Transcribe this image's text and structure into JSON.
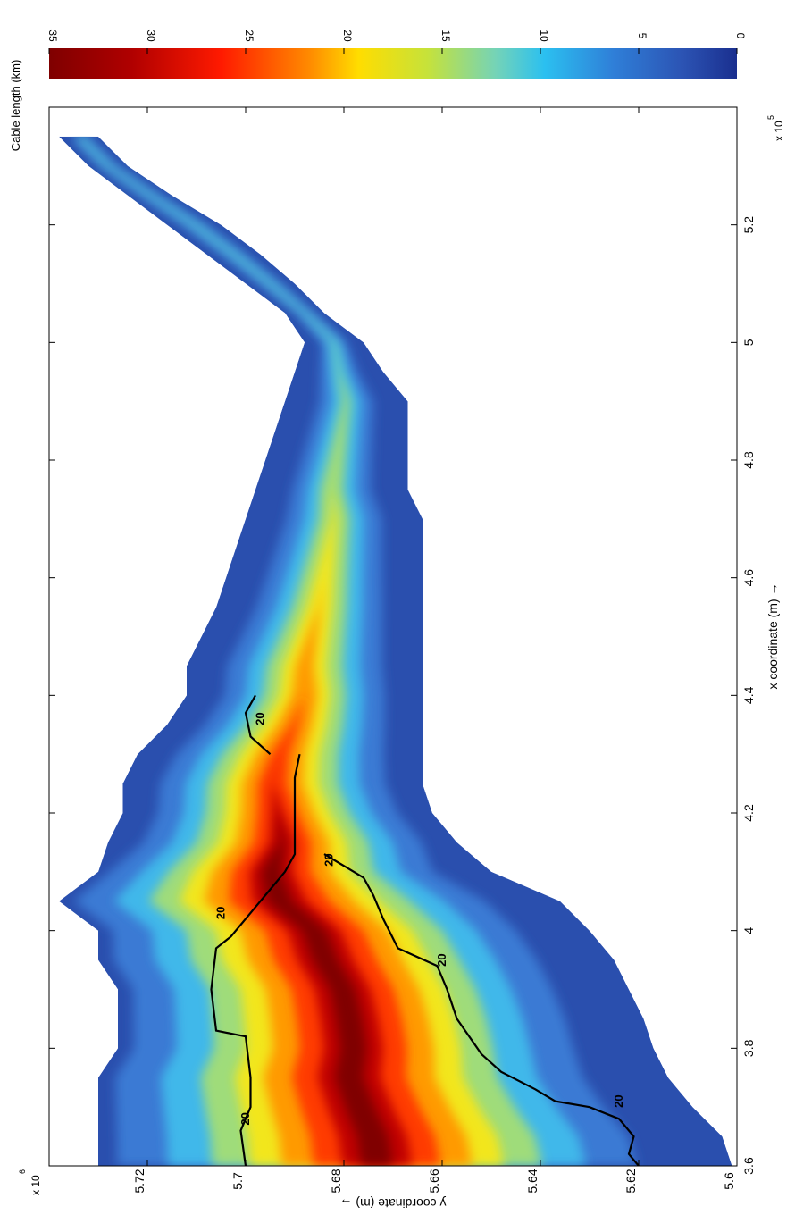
{
  "chart_data": {
    "type": "heatmap",
    "title": "",
    "xlabel": "x coordinate (m) →",
    "ylabel": "y coordinate (m) →",
    "x_exponent_label": "x 10",
    "x_exponent_power": "5",
    "y_exponent_label": "x 10",
    "y_exponent_power": "6",
    "xlim": [
      3.6,
      5.4
    ],
    "ylim": [
      5.6,
      5.74
    ],
    "x_ticks": [
      "3.6",
      "3.8",
      "4",
      "4.2",
      "4.4",
      "4.6",
      "4.8",
      "5",
      "5.2"
    ],
    "y_ticks": [
      "5.6",
      "5.62",
      "5.64",
      "5.66",
      "5.68",
      "5.7",
      "5.72"
    ],
    "colorbar": {
      "label": "Cable length (km)",
      "range": [
        0,
        35
      ],
      "ticks": [
        "0",
        "5",
        "10",
        "15",
        "20",
        "25",
        "30",
        "35"
      ],
      "colormap": "jet"
    },
    "contour": {
      "level": 20,
      "label": "20",
      "color": "#000000"
    },
    "region_outline_x": [
      3.6,
      3.65,
      3.7,
      3.75,
      3.8,
      3.85,
      3.9,
      3.95,
      4.0,
      4.05,
      4.1,
      4.15,
      4.2,
      4.25,
      4.3,
      4.35,
      4.4,
      4.45,
      4.5,
      4.55,
      4.6,
      4.65,
      4.7,
      4.75,
      4.8,
      4.85,
      4.9,
      4.95,
      5.0,
      5.05,
      5.1,
      5.15,
      5.2,
      5.25,
      5.3,
      5.35
    ],
    "region_top_y": [
      5.73,
      5.73,
      5.73,
      5.73,
      5.726,
      5.726,
      5.726,
      5.73,
      5.73,
      5.738,
      5.73,
      5.728,
      5.725,
      5.725,
      5.722,
      5.716,
      5.712,
      5.712,
      5.709,
      5.706,
      5.704,
      5.702,
      5.7,
      5.698,
      5.696,
      5.694,
      5.692,
      5.69,
      5.688,
      5.692,
      5.7,
      5.708,
      5.716,
      5.724,
      5.732,
      5.738
    ],
    "region_bottom_y": [
      5.601,
      5.603,
      5.609,
      5.614,
      5.617,
      5.619,
      5.622,
      5.625,
      5.63,
      5.636,
      5.65,
      5.657,
      5.662,
      5.664,
      5.664,
      5.664,
      5.664,
      5.664,
      5.664,
      5.664,
      5.664,
      5.664,
      5.664,
      5.667,
      5.667,
      5.667,
      5.667,
      5.672,
      5.676,
      5.684,
      5.69,
      5.697,
      5.705,
      5.715,
      5.724,
      5.73
    ],
    "peak_value_km": 35,
    "contour_labels_positions": [
      {
        "x": 3.68,
        "y": 5.7
      },
      {
        "x": 3.71,
        "y": 5.624
      },
      {
        "x": 3.95,
        "y": 5.66
      },
      {
        "x": 4.03,
        "y": 5.705
      },
      {
        "x": 4.12,
        "y": 5.683
      },
      {
        "x": 4.36,
        "y": 5.697
      }
    ]
  }
}
